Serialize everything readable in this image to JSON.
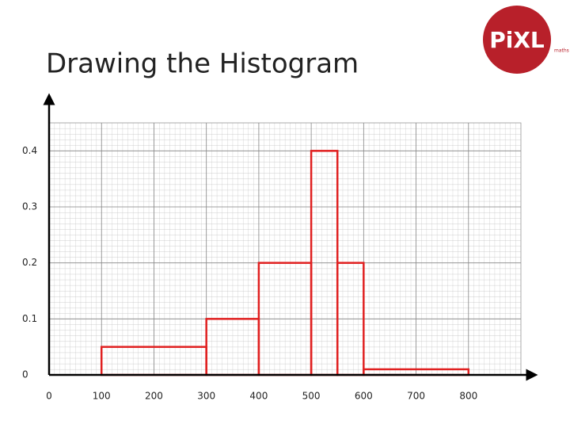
{
  "chart_data": {
    "type": "histogram",
    "title": "Drawing the Histogram",
    "bins": [
      100,
      300,
      400,
      500,
      550,
      600,
      800
    ],
    "counts": [
      0.05,
      0.1,
      0.2,
      0.4,
      0.2,
      0.01
    ],
    "color": "#e02020",
    "xlim": [
      0,
      900
    ],
    "xticks": [
      0,
      100,
      200,
      300,
      400,
      500,
      600,
      700,
      800
    ],
    "ylim": [
      0,
      0.45
    ],
    "yticks": [
      0,
      0.1,
      0.2,
      0.3,
      0.4
    ],
    "grid": true
  },
  "logo": {
    "text": "PiXL",
    "subtext": "maths"
  }
}
